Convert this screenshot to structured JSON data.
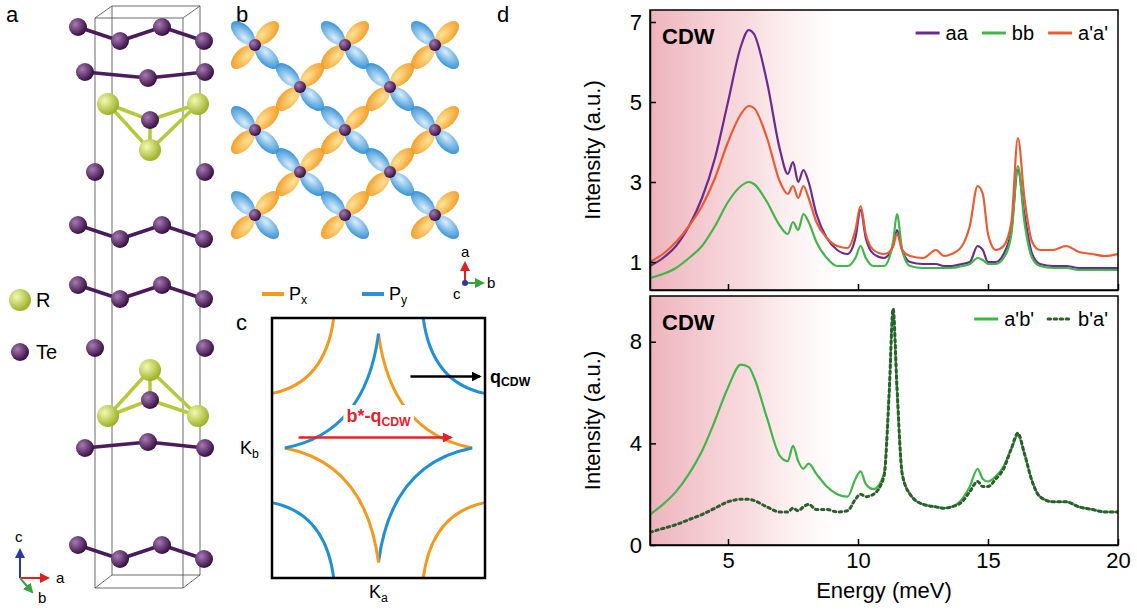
{
  "chart_data": [
    {
      "type": "line",
      "x": [
        2,
        2.5,
        3,
        3.5,
        4,
        4.5,
        5,
        5.5,
        5.8,
        6,
        6.5,
        7,
        7.3,
        7.5,
        7.7,
        7.9,
        8.1,
        8.4,
        8.8,
        9.2,
        9.6,
        9.9,
        10.1,
        10.3,
        10.6,
        11,
        11.2,
        11.35,
        11.5,
        11.7,
        12,
        12.5,
        13,
        13.3,
        13.6,
        14,
        14.3,
        14.6,
        14.8,
        15,
        15.3,
        15.6,
        15.9,
        16.15,
        16.4,
        16.7,
        17,
        17.5,
        18,
        18.5,
        19,
        19.5,
        20
      ],
      "series": [
        {
          "name": "aa",
          "color": "#6a2a8e",
          "line_style": "solid",
          "values": [
            0.9,
            1.1,
            1.4,
            1.9,
            2.6,
            3.6,
            5.0,
            6.4,
            6.8,
            6.7,
            5.5,
            3.8,
            3.2,
            3.5,
            3.0,
            3.3,
            3.0,
            2.2,
            1.6,
            1.3,
            1.2,
            1.6,
            2.3,
            1.6,
            1.2,
            1.1,
            1.2,
            1.4,
            1.8,
            1.3,
            1.0,
            0.95,
            0.95,
            0.9,
            0.9,
            0.95,
            1.0,
            1.4,
            1.3,
            1.0,
            1.0,
            1.2,
            1.8,
            3.3,
            2.2,
            1.2,
            0.95,
            0.9,
            0.9,
            0.85,
            0.85,
            0.85,
            0.85
          ]
        },
        {
          "name": "bb",
          "color": "#41b649",
          "line_style": "solid",
          "values": [
            0.6,
            0.7,
            0.85,
            1.1,
            1.4,
            1.9,
            2.5,
            2.9,
            3.0,
            2.95,
            2.5,
            1.9,
            1.7,
            2.0,
            1.8,
            2.2,
            2.0,
            1.5,
            1.1,
            0.9,
            0.9,
            1.1,
            1.4,
            1.1,
            0.9,
            0.9,
            1.1,
            1.5,
            2.2,
            1.3,
            0.9,
            0.85,
            0.85,
            0.85,
            0.85,
            0.9,
            0.95,
            1.1,
            1.05,
            0.95,
            0.95,
            1.1,
            1.7,
            3.4,
            2.0,
            1.1,
            0.9,
            0.85,
            0.85,
            0.8,
            0.8,
            0.8,
            0.8
          ]
        },
        {
          "name": "a'a'",
          "color": "#ec5a33",
          "line_style": "solid",
          "values": [
            1.0,
            1.2,
            1.5,
            1.9,
            2.4,
            3.1,
            4.0,
            4.7,
            4.9,
            4.85,
            4.1,
            3.0,
            2.7,
            2.9,
            2.6,
            2.9,
            2.6,
            2.0,
            1.6,
            1.4,
            1.35,
            1.8,
            2.4,
            1.7,
            1.3,
            1.2,
            1.25,
            1.4,
            1.7,
            1.3,
            1.15,
            1.1,
            1.3,
            1.15,
            1.2,
            1.4,
            1.9,
            2.9,
            2.7,
            1.7,
            1.3,
            1.4,
            2.0,
            4.1,
            2.6,
            1.5,
            1.3,
            1.3,
            1.4,
            1.25,
            1.2,
            1.15,
            1.2
          ]
        }
      ],
      "xlim": [
        2,
        20
      ],
      "xticks": [
        5,
        10,
        15,
        20
      ],
      "ylim": [
        0.3,
        7.3
      ],
      "yticks": [
        1,
        3,
        5,
        7
      ],
      "y_label": "Intensity (a.u.)",
      "tick_labels": "y",
      "legend": "upper right",
      "annotations": [
        {
          "text": "CDW",
          "x0": 2,
          "x1": 9
        }
      ]
    },
    {
      "type": "line",
      "x": [
        2,
        2.5,
        3,
        3.5,
        4,
        4.5,
        5,
        5.5,
        5.8,
        6,
        6.5,
        7,
        7.3,
        7.5,
        7.7,
        7.9,
        8.1,
        8.4,
        8.8,
        9.2,
        9.6,
        9.9,
        10.1,
        10.3,
        10.6,
        11,
        11.2,
        11.35,
        11.5,
        11.7,
        12,
        12.5,
        13,
        13.3,
        13.6,
        14,
        14.3,
        14.6,
        14.8,
        15,
        15.3,
        15.6,
        15.9,
        16.15,
        16.4,
        16.7,
        17,
        17.5,
        18,
        18.5,
        19,
        19.5,
        20
      ],
      "series": [
        {
          "name": "a'b'",
          "color": "#41b649",
          "line_style": "solid",
          "values": [
            1.2,
            1.6,
            2.1,
            2.8,
            3.7,
            4.9,
            6.2,
            7.1,
            7.0,
            6.6,
            5.0,
            3.5,
            3.3,
            3.9,
            3.3,
            3.0,
            3.2,
            2.8,
            2.3,
            2.0,
            1.9,
            2.6,
            2.9,
            2.4,
            2.2,
            2.8,
            6.0,
            9.2,
            6.0,
            2.8,
            2.0,
            1.6,
            1.5,
            1.45,
            1.5,
            1.8,
            2.3,
            3.0,
            2.6,
            2.5,
            2.7,
            3.1,
            3.8,
            4.3,
            3.6,
            2.5,
            1.9,
            1.7,
            1.7,
            1.5,
            1.4,
            1.3,
            1.3
          ]
        },
        {
          "name": "b'a'",
          "color": "#2c5e2e",
          "line_style": "dotted",
          "values": [
            0.5,
            0.65,
            0.8,
            1.0,
            1.2,
            1.45,
            1.7,
            1.8,
            1.8,
            1.75,
            1.5,
            1.3,
            1.3,
            1.45,
            1.35,
            1.5,
            1.6,
            1.4,
            1.4,
            1.3,
            1.35,
            1.8,
            2.0,
            1.9,
            2.0,
            2.7,
            6.0,
            9.3,
            6.2,
            2.8,
            2.0,
            1.6,
            1.5,
            1.45,
            1.5,
            1.7,
            2.1,
            2.5,
            2.3,
            2.3,
            2.6,
            3.0,
            3.8,
            4.4,
            3.6,
            2.5,
            1.9,
            1.7,
            1.7,
            1.5,
            1.4,
            1.3,
            1.3
          ]
        }
      ],
      "xlim": [
        2,
        20
      ],
      "xticks": [
        5,
        10,
        15,
        20
      ],
      "ylim": [
        0,
        9.8
      ],
      "yticks": [
        0,
        4,
        8
      ],
      "x_label": "Energy (meV)",
      "y_label": "Intensity (a.u.)",
      "legend": "upper right",
      "annotations": [
        {
          "text": "CDW",
          "x0": 2,
          "x1": 9
        }
      ]
    }
  ],
  "figure": {
    "panel_labels": [
      "a",
      "b",
      "c",
      "d"
    ],
    "structure": {
      "legend": [
        "R",
        "Te"
      ],
      "axes": [
        "c",
        "a",
        "b"
      ]
    },
    "orbitals": {
      "legend": [
        {
          "base": "P",
          "sub": "x"
        },
        {
          "base": "P",
          "sub": "y"
        }
      ],
      "axes": [
        "a",
        "c",
        "b"
      ]
    },
    "fermi_surface": {
      "axis_labels": [
        {
          "base": "K",
          "sub": "b"
        },
        {
          "base": "K",
          "sub": "a"
        }
      ],
      "arrows": [
        {
          "base": "q",
          "sub": "CDW"
        },
        {
          "base": "b*-q",
          "sub": "CDW"
        }
      ]
    }
  }
}
